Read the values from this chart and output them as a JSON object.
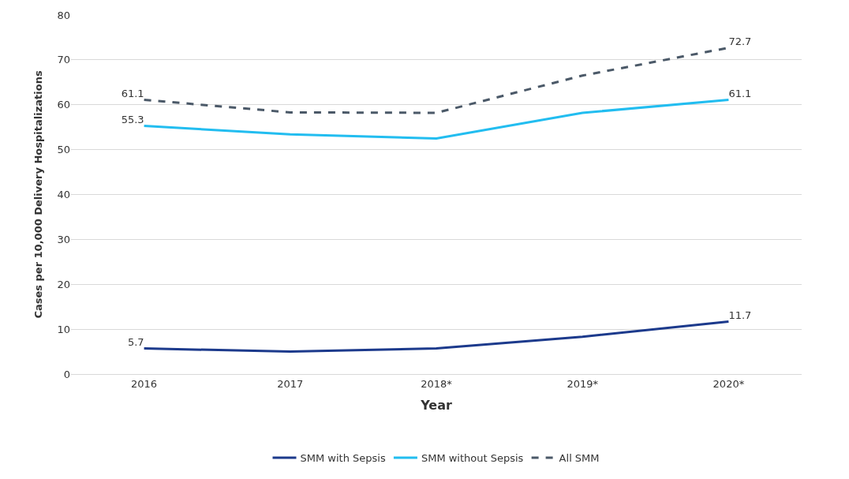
{
  "chart_data": {
    "type": "line",
    "xlabel": "Year",
    "ylabel": "Cases per 10,000 Delivery Hospitalizations",
    "categories": [
      "2016",
      "2017",
      "2018*",
      "2019*",
      "2020*"
    ],
    "series": [
      {
        "name": "SMM with Sepsis",
        "color": "#1c3a8c",
        "line_style": "solid",
        "values": [
          5.7,
          5.0,
          5.7,
          8.3,
          11.7
        ],
        "value_labels": [
          "5.7",
          null,
          null,
          null,
          "11.7"
        ]
      },
      {
        "name": "SMM without Sepsis",
        "color": "#22bdf0",
        "line_style": "solid",
        "values": [
          55.3,
          53.4,
          52.5,
          58.2,
          61.1
        ],
        "value_labels": [
          "55.3",
          null,
          null,
          null,
          "61.1"
        ]
      },
      {
        "name": "All SMM",
        "color": "#4b5968",
        "line_style": "dashed",
        "values": [
          61.1,
          58.3,
          58.2,
          66.5,
          72.7
        ],
        "value_labels": [
          "61.1",
          null,
          null,
          null,
          "72.7"
        ]
      }
    ],
    "ylim": [
      0,
      80
    ],
    "yticks": [
      0,
      10,
      20,
      30,
      40,
      50,
      60,
      70,
      80
    ],
    "grid": "y",
    "legend": "bottom",
    "marker": "none"
  }
}
